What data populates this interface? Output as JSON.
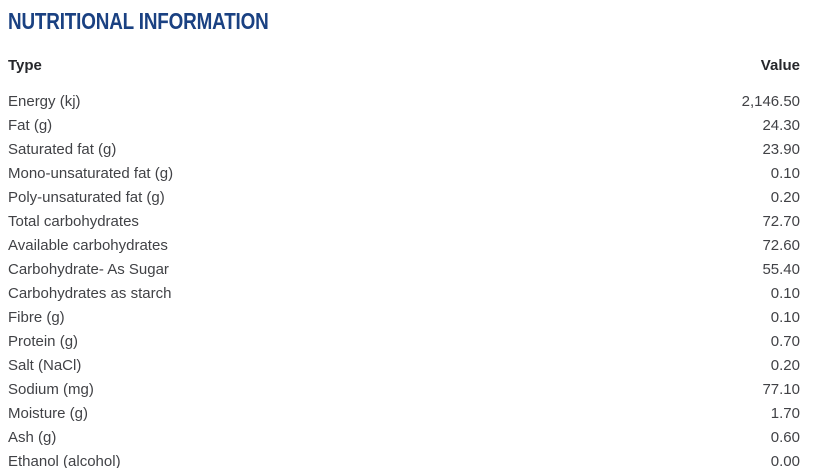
{
  "page": {
    "title": "NUTRITIONAL INFORMATION",
    "title_color": "#1a4182"
  },
  "table": {
    "headers": {
      "type": "Type",
      "value": "Value"
    },
    "rows": [
      {
        "type": "Energy (kj)",
        "value": "2,146.50"
      },
      {
        "type": "Fat (g)",
        "value": "24.30"
      },
      {
        "type": "Saturated fat (g)",
        "value": "23.90"
      },
      {
        "type": "Mono-unsaturated fat (g)",
        "value": "0.10"
      },
      {
        "type": "Poly-unsaturated fat (g)",
        "value": "0.20"
      },
      {
        "type": "Total carbohydrates",
        "value": "72.70"
      },
      {
        "type": "Available carbohydrates",
        "value": "72.60"
      },
      {
        "type": "Carbohydrate- As Sugar",
        "value": "55.40"
      },
      {
        "type": "Carbohydrates as starch",
        "value": "0.10"
      },
      {
        "type": "Fibre (g)",
        "value": "0.10"
      },
      {
        "type": "Protein (g)",
        "value": "0.70"
      },
      {
        "type": "Salt (NaCl)",
        "value": "0.20"
      },
      {
        "type": "Sodium (mg)",
        "value": "77.10"
      },
      {
        "type": "Moisture (g)",
        "value": "1.70"
      },
      {
        "type": "Ash (g)",
        "value": "0.60"
      },
      {
        "type": "Ethanol (alcohol)",
        "value": "0.00"
      }
    ]
  }
}
